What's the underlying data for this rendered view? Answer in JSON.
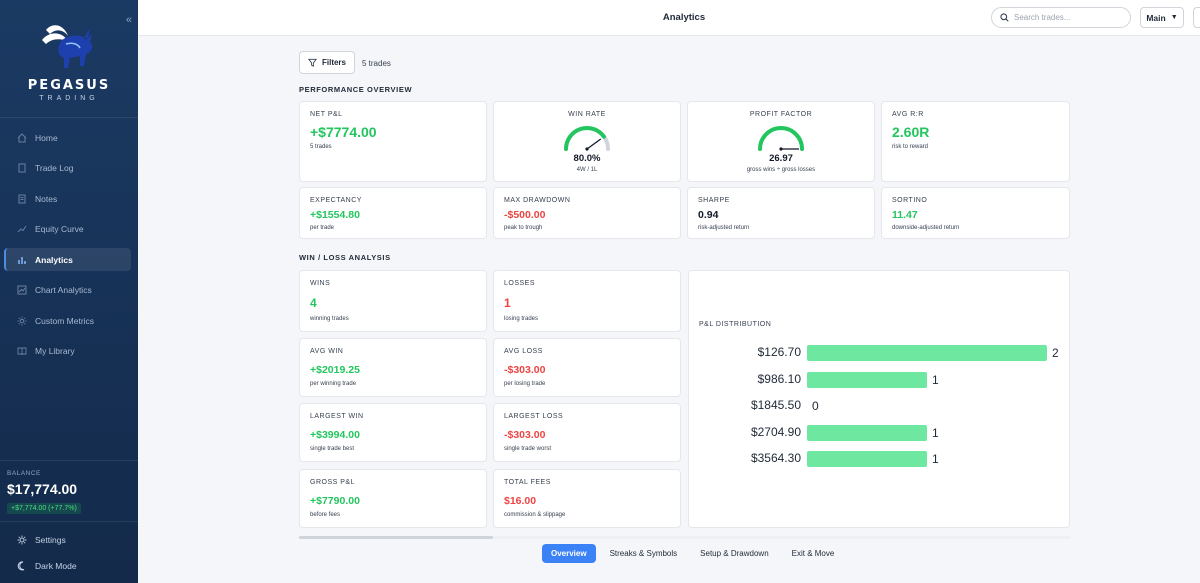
{
  "sidebar": {
    "brand": "PEGASUS",
    "brand_sub": "TRADING",
    "nav": [
      {
        "label": "Home",
        "icon": "home-icon"
      },
      {
        "label": "Trade Log",
        "icon": "document-icon"
      },
      {
        "label": "Notes",
        "icon": "notes-icon"
      },
      {
        "label": "Equity Curve",
        "icon": "trend-icon"
      },
      {
        "label": "Analytics",
        "icon": "bar-chart-icon",
        "active": true
      },
      {
        "label": "Chart Analytics",
        "icon": "chart-icon"
      },
      {
        "label": "Custom Metrics",
        "icon": "sparkle-icon"
      },
      {
        "label": "My Library",
        "icon": "book-icon"
      }
    ],
    "balance_label": "BALANCE",
    "balance_value": "$17,774.00",
    "balance_change": "+$7,774.00 (+77.7%)",
    "settings_label": "Settings",
    "dark_mode_label": "Dark Mode"
  },
  "header": {
    "title": "Analytics",
    "search_placeholder": "Search trades...",
    "account": "Main"
  },
  "toolbar": {
    "filters_label": "Filters",
    "trade_count": "5 trades"
  },
  "performance": {
    "section_title": "PERFORMANCE OVERVIEW",
    "net_pnl": {
      "label": "NET P&L",
      "value": "+$7774.00",
      "sub": "5 trades"
    },
    "win_rate": {
      "label": "WIN RATE",
      "value": "80.0%",
      "sub": "4W / 1L",
      "fraction": 0.8
    },
    "profit_factor": {
      "label": "PROFIT FACTOR",
      "value": "26.97",
      "sub": "gross wins ÷ gross losses"
    },
    "avg_rr": {
      "label": "AVG R:R",
      "value": "2.60R",
      "sub": "risk to reward"
    },
    "expectancy": {
      "label": "EXPECTANCY",
      "value": "+$1554.80",
      "sub": "per trade"
    },
    "max_drawdown": {
      "label": "MAX DRAWDOWN",
      "value": "-$500.00",
      "sub": "peak to trough"
    },
    "sharpe": {
      "label": "SHARPE",
      "value": "0.94",
      "sub": "risk-adjusted return"
    },
    "sortino": {
      "label": "SORTINO",
      "value": "11.47",
      "sub": "downside-adjusted return"
    }
  },
  "winloss": {
    "section_title": "WIN / LOSS ANALYSIS",
    "wins": {
      "label": "WINS",
      "value": "4",
      "sub": "winning trades"
    },
    "losses": {
      "label": "LOSSES",
      "value": "1",
      "sub": "losing trades"
    },
    "avg_win": {
      "label": "AVG WIN",
      "value": "+$2019.25",
      "sub": "per winning trade"
    },
    "avg_loss": {
      "label": "AVG LOSS",
      "value": "-$303.00",
      "sub": "per losing trade"
    },
    "largest_win": {
      "label": "LARGEST WIN",
      "value": "+$3994.00",
      "sub": "single trade best"
    },
    "largest_loss": {
      "label": "LARGEST LOSS",
      "value": "-$303.00",
      "sub": "single trade worst"
    },
    "gross_pnl": {
      "label": "GROSS P&L",
      "value": "+$7790.00",
      "sub": "before fees"
    },
    "total_fees": {
      "label": "TOTAL FEES",
      "value": "$16.00",
      "sub": "commission & slippage"
    }
  },
  "chart_data": {
    "type": "bar",
    "title": "P&L DISTRIBUTION",
    "orientation": "horizontal",
    "categories": [
      "$126.70",
      "$986.10",
      "$1845.50",
      "$2704.90",
      "$3564.30"
    ],
    "values": [
      2,
      1,
      0,
      1,
      1
    ],
    "xlim": [
      0,
      2
    ],
    "color": "#6ee7a0"
  },
  "tabs": [
    {
      "label": "Overview",
      "active": true
    },
    {
      "label": "Streaks & Symbols"
    },
    {
      "label": "Setup & Drawdown"
    },
    {
      "label": "Exit & Move"
    }
  ],
  "colors": {
    "positive": "#22c55e",
    "negative": "#ef4444",
    "accent": "#3b82f6",
    "sidebar": "#173257"
  }
}
